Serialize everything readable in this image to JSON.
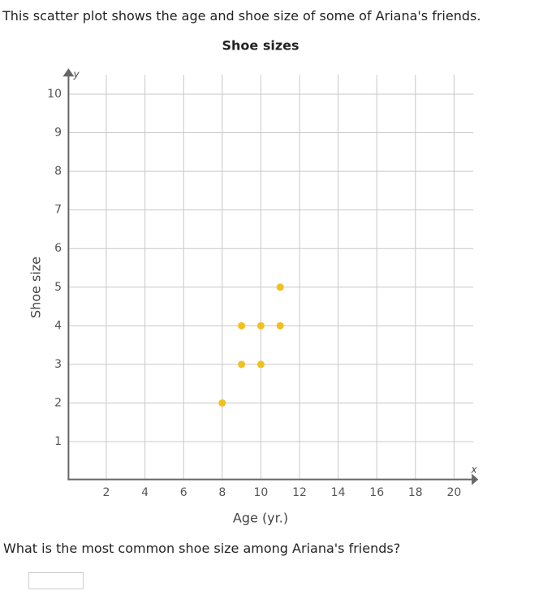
{
  "intro": "This scatter plot shows the age and shoe size of some of Ariana's friends.",
  "question": "What is the most common shoe size among Ariana's friends?",
  "chart_data": {
    "type": "scatter",
    "title": "Shoe sizes",
    "xlabel": "Age (yr.)",
    "ylabel": "Shoe size",
    "x_axis_letter": "x",
    "y_axis_letter": "y",
    "x": [
      8,
      9,
      9,
      10,
      10,
      11,
      11
    ],
    "values": [
      2,
      3,
      4,
      3,
      4,
      4,
      5
    ],
    "color": "#f2c01e",
    "xlim": [
      0,
      21
    ],
    "ylim": [
      0,
      10.5
    ],
    "xticks": [
      2,
      4,
      6,
      8,
      10,
      12,
      14,
      16,
      18,
      20
    ],
    "yticks": [
      1,
      2,
      3,
      4,
      5,
      6,
      7,
      8,
      9,
      10
    ],
    "grid": true
  }
}
